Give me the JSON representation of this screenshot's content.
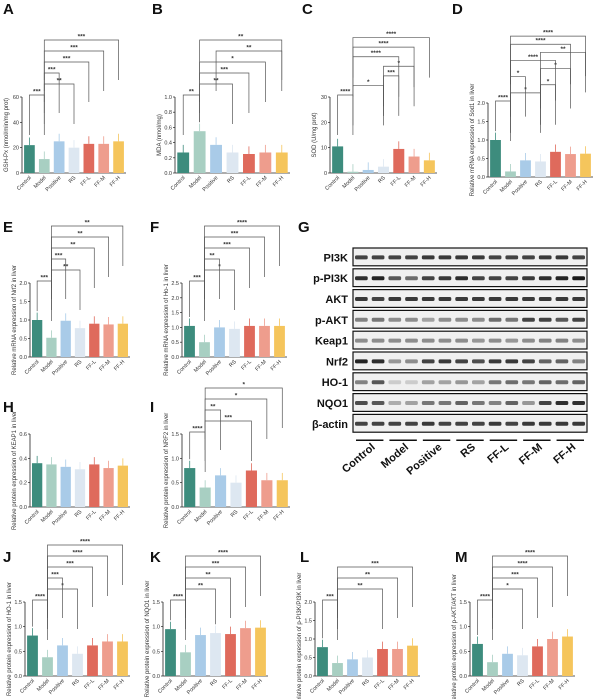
{
  "groups": [
    "Control",
    "Model",
    "Positive",
    "RS",
    "FF-L",
    "FF-M",
    "FF-H"
  ],
  "colors": {
    "Control": "#3d8c7d",
    "Model": "#a8cfc2",
    "Positive": "#a9cbe8",
    "RS": "#dde7f1",
    "FF-L": "#df6a5c",
    "FF-M": "#ee9d8d",
    "FF-H": "#f5c55c"
  },
  "chart_data": [
    {
      "panel": "A",
      "type": "bar",
      "ylabel": "GSH-Px (nmol/min/mg prot)",
      "ylim": [
        0,
        60
      ],
      "yticks": [
        "0",
        "20",
        "40",
        "60"
      ],
      "categories": [
        "Control",
        "Model",
        "Positive",
        "RS",
        "FF-L",
        "FF-M",
        "FF-H"
      ],
      "values": [
        22,
        11,
        25,
        20,
        23,
        23,
        25
      ],
      "brackets": [
        [
          0,
          1,
          "***"
        ],
        [
          1,
          3,
          "**"
        ],
        [
          1,
          2,
          "***"
        ],
        [
          1,
          4,
          "***"
        ],
        [
          1,
          5,
          "***"
        ],
        [
          1,
          6,
          "***"
        ]
      ]
    },
    {
      "panel": "B",
      "type": "bar",
      "ylabel": "MDA (nmol/mg)",
      "ylim": [
        0,
        1.0
      ],
      "yticks": [
        "0.0",
        "0.2",
        "0.4",
        "0.6",
        "0.8",
        "1.0"
      ],
      "categories": [
        "Control",
        "Model",
        "Positive",
        "RS",
        "FF-L",
        "FF-M",
        "FF-H"
      ],
      "values": [
        0.27,
        0.55,
        0.37,
        0.27,
        0.25,
        0.27,
        0.27
      ],
      "brackets": [
        [
          0,
          1,
          "**"
        ],
        [
          1,
          3,
          "**"
        ],
        [
          1,
          4,
          "***"
        ],
        [
          1,
          5,
          "*"
        ],
        [
          2,
          6,
          "**"
        ],
        [
          1,
          6,
          "**"
        ]
      ]
    },
    {
      "panel": "C",
      "type": "bar",
      "ylabel": "SOD (U/mg prot)",
      "ylim": [
        0,
        30
      ],
      "yticks": [
        "0",
        "10",
        "20",
        "30"
      ],
      "categories": [
        "Control",
        "Model",
        "Positive",
        "RS",
        "FF-L",
        "FF-M",
        "FF-H"
      ],
      "values": [
        10.5,
        0.5,
        1.2,
        2.5,
        9.5,
        6.5,
        5
      ],
      "brackets": [
        [
          0,
          1,
          "****"
        ],
        [
          1,
          3,
          "*"
        ],
        [
          3,
          4,
          "***"
        ],
        [
          3,
          5,
          "*"
        ],
        [
          1,
          4,
          "****"
        ],
        [
          1,
          5,
          "****"
        ],
        [
          1,
          6,
          "****"
        ]
      ]
    },
    {
      "panel": "D",
      "type": "bar",
      "ylabel": "Relative mRNA expression of Sod1 in liver",
      "ylim": [
        0,
        2.0
      ],
      "yticks": [
        "0.0",
        "0.5",
        "1.0",
        "1.5",
        "2.0"
      ],
      "categories": [
        "Control",
        "Model",
        "Positive",
        "RS",
        "FF-L",
        "FF-M",
        "FF-H"
      ],
      "values": [
        1.0,
        0.15,
        0.45,
        0.42,
        0.68,
        0.62,
        0.63
      ],
      "brackets": [
        [
          0,
          1,
          "****"
        ],
        [
          1,
          3,
          "*"
        ],
        [
          3,
          4,
          "*"
        ],
        [
          1,
          2,
          "*"
        ],
        [
          3,
          5,
          "*"
        ],
        [
          1,
          4,
          "****"
        ],
        [
          3,
          6,
          "**"
        ],
        [
          1,
          5,
          "****"
        ],
        [
          1,
          6,
          "****"
        ]
      ]
    },
    {
      "panel": "E",
      "type": "bar",
      "ylabel": "Relative mRNA expression of Nrf2 in liver",
      "ylim": [
        0,
        2.0
      ],
      "yticks": [
        "0.0",
        "0.5",
        "1.0",
        "1.5",
        "2.0"
      ],
      "categories": [
        "Control",
        "Model",
        "Positive",
        "RS",
        "FF-L",
        "FF-M",
        "FF-H"
      ],
      "values": [
        1.0,
        0.52,
        0.98,
        0.78,
        0.9,
        0.88,
        0.9
      ],
      "brackets": [
        [
          0,
          1,
          "***"
        ],
        [
          1,
          3,
          "**"
        ],
        [
          1,
          2,
          "***"
        ],
        [
          1,
          4,
          "**"
        ],
        [
          1,
          5,
          "**"
        ],
        [
          1,
          6,
          "**"
        ]
      ]
    },
    {
      "panel": "F",
      "type": "bar",
      "ylabel": "Relative mRNA expression of Ho-1 in liver",
      "ylim": [
        0,
        2.5
      ],
      "yticks": [
        "0.0",
        "0.5",
        "1.0",
        "1.5",
        "2.0",
        "2.5"
      ],
      "categories": [
        "Control",
        "Model",
        "Positive",
        "RS",
        "FF-L",
        "FF-M",
        "FF-H"
      ],
      "values": [
        1.05,
        0.5,
        1.0,
        0.95,
        1.05,
        1.05,
        1.05
      ],
      "brackets": [
        [
          0,
          1,
          "***"
        ],
        [
          1,
          3,
          "*"
        ],
        [
          1,
          2,
          "**"
        ],
        [
          1,
          4,
          "***"
        ],
        [
          1,
          5,
          "***"
        ],
        [
          1,
          6,
          "****"
        ]
      ]
    },
    {
      "panel": "H",
      "type": "bar",
      "ylabel": "Relative protein expression of KEAP1 in liver",
      "ylim": [
        0,
        0.6
      ],
      "yticks": [
        "0.0",
        "0.2",
        "0.4",
        "0.6"
      ],
      "categories": [
        "Control",
        "Model",
        "Positive",
        "RS",
        "FF-L",
        "FF-M",
        "FF-H"
      ],
      "values": [
        0.36,
        0.35,
        0.33,
        0.31,
        0.35,
        0.32,
        0.34
      ],
      "brackets": []
    },
    {
      "panel": "I",
      "type": "bar",
      "ylabel": "Relative protein expression of NRF2 in liver",
      "ylim": [
        0,
        1.5
      ],
      "yticks": [
        "0.0",
        "0.5",
        "1.0",
        "1.5"
      ],
      "categories": [
        "Control",
        "Model",
        "Positive",
        "RS",
        "FF-L",
        "FF-M",
        "FF-H"
      ],
      "values": [
        0.8,
        0.4,
        0.65,
        0.5,
        0.75,
        0.55,
        0.55
      ],
      "brackets": [
        [
          0,
          1,
          "****"
        ],
        [
          1,
          4,
          "***"
        ],
        [
          1,
          2,
          "**"
        ],
        [
          1,
          5,
          "*"
        ],
        [
          1,
          6,
          "*"
        ]
      ]
    },
    {
      "panel": "J",
      "type": "bar",
      "ylabel": "Relative protein expression of HO-1 in liver",
      "ylim": [
        0,
        1.5
      ],
      "yticks": [
        "0.0",
        "0.5",
        "1.0",
        "1.5"
      ],
      "categories": [
        "Control",
        "Model",
        "Positive",
        "RS",
        "FF-L",
        "FF-M",
        "FF-H"
      ],
      "values": [
        0.82,
        0.38,
        0.62,
        0.45,
        0.62,
        0.7,
        0.7
      ],
      "brackets": [
        [
          0,
          1,
          "****"
        ],
        [
          1,
          3,
          "*"
        ],
        [
          1,
          2,
          "***"
        ],
        [
          1,
          4,
          "***"
        ],
        [
          1,
          5,
          "****"
        ],
        [
          1,
          6,
          "****"
        ]
      ]
    },
    {
      "panel": "K",
      "type": "bar",
      "ylabel": "Relative protein expression of NQO1 in liver",
      "ylim": [
        0,
        1.5
      ],
      "yticks": [
        "0.0",
        "0.5",
        "1.0",
        "1.5"
      ],
      "categories": [
        "Control",
        "Model",
        "Positive",
        "RS",
        "FF-L",
        "FF-M",
        "FF-H"
      ],
      "values": [
        0.95,
        0.48,
        0.83,
        0.87,
        0.85,
        0.97,
        0.98
      ],
      "brackets": [
        [
          0,
          1,
          "****"
        ],
        [
          1,
          3,
          "**"
        ],
        [
          1,
          4,
          "**"
        ],
        [
          1,
          5,
          "***"
        ],
        [
          1,
          6,
          "****"
        ]
      ]
    },
    {
      "panel": "L",
      "type": "bar",
      "ylabel": "Relative protein expression of p-PI3K/PI3K in liver",
      "ylim": [
        0,
        2.0
      ],
      "yticks": [
        "0.0",
        "0.5",
        "1.0",
        "1.5",
        "2.0"
      ],
      "categories": [
        "Control",
        "Model",
        "Positive",
        "RS",
        "FF-L",
        "FF-M",
        "FF-H"
      ],
      "values": [
        0.78,
        0.35,
        0.45,
        0.5,
        0.73,
        0.73,
        0.82
      ],
      "brackets": [
        [
          0,
          1,
          "***"
        ],
        [
          1,
          4,
          "**"
        ],
        [
          1,
          5,
          "**"
        ],
        [
          1,
          6,
          "***"
        ]
      ]
    },
    {
      "panel": "M",
      "type": "bar",
      "ylabel": "Relative protein expression of p-AKT/AKT in liver",
      "ylim": [
        0,
        1.5
      ],
      "yticks": [
        "0.0",
        "0.5",
        "1.0",
        "1.5"
      ],
      "categories": [
        "Control",
        "Model",
        "Positive",
        "RS",
        "FF-L",
        "FF-M",
        "FF-H"
      ],
      "values": [
        0.65,
        0.28,
        0.45,
        0.42,
        0.6,
        0.75,
        0.8
      ],
      "brackets": [
        [
          0,
          1,
          "****"
        ],
        [
          1,
          3,
          "*"
        ],
        [
          1,
          4,
          "***"
        ],
        [
          1,
          5,
          "****"
        ],
        [
          1,
          6,
          "****"
        ]
      ]
    }
  ],
  "blot": {
    "panel": "G",
    "lanes": [
      "Control",
      "Model",
      "Positive",
      "RS",
      "FF-L",
      "FF-M",
      "FF-H"
    ],
    "rows": [
      {
        "label": "PI3K",
        "bands": [
          0.8,
          0.8,
          0.8,
          0.8,
          0.85,
          0.85,
          0.85,
          0.85,
          0.8,
          0.8,
          0.8,
          0.85,
          0.85,
          0.8
        ]
      },
      {
        "label": "p-PI3K",
        "bands": [
          0.9,
          0.95,
          0.7,
          0.6,
          0.8,
          0.85,
          0.9,
          0.8,
          0.8,
          0.8,
          0.85,
          0.9,
          0.95,
          1.0
        ]
      },
      {
        "label": "AKT",
        "bands": [
          0.85,
          0.8,
          0.85,
          0.85,
          0.85,
          0.85,
          0.85,
          0.85,
          0.85,
          0.85,
          0.85,
          0.85,
          0.85,
          0.85
        ]
      },
      {
        "label": "p-AKT",
        "bands": [
          0.5,
          0.55,
          0.45,
          0.45,
          0.35,
          0.45,
          0.45,
          0.45,
          0.6,
          0.55,
          0.8,
          0.8,
          0.7,
          0.8
        ]
      },
      {
        "label": "Keap1",
        "bands": [
          0.45,
          0.45,
          0.45,
          0.45,
          0.45,
          0.45,
          0.45,
          0.4,
          0.45,
          0.4,
          0.45,
          0.5,
          0.5,
          0.45
        ]
      },
      {
        "label": "Nrf2",
        "bands": [
          0.95,
          0.9,
          0.4,
          0.45,
          0.8,
          0.85,
          0.8,
          0.75,
          0.85,
          0.85,
          0.8,
          0.65,
          0.65,
          0.5
        ]
      },
      {
        "label": "HO-1",
        "bands": [
          0.5,
          0.7,
          0.15,
          0.15,
          0.35,
          0.35,
          0.4,
          0.35,
          0.55,
          0.6,
          0.55,
          0.65,
          0.6,
          0.65
        ]
      },
      {
        "label": "NQO1",
        "bands": [
          0.75,
          0.7,
          0.3,
          0.35,
          0.55,
          0.55,
          0.65,
          0.55,
          0.5,
          0.65,
          0.4,
          0.8,
          0.9,
          0.9
        ]
      },
      {
        "label": "β-actin",
        "bands": [
          0.8,
          0.8,
          0.8,
          0.8,
          0.85,
          0.8,
          0.8,
          0.8,
          0.85,
          0.8,
          0.85,
          0.85,
          0.85,
          0.85
        ]
      }
    ]
  }
}
